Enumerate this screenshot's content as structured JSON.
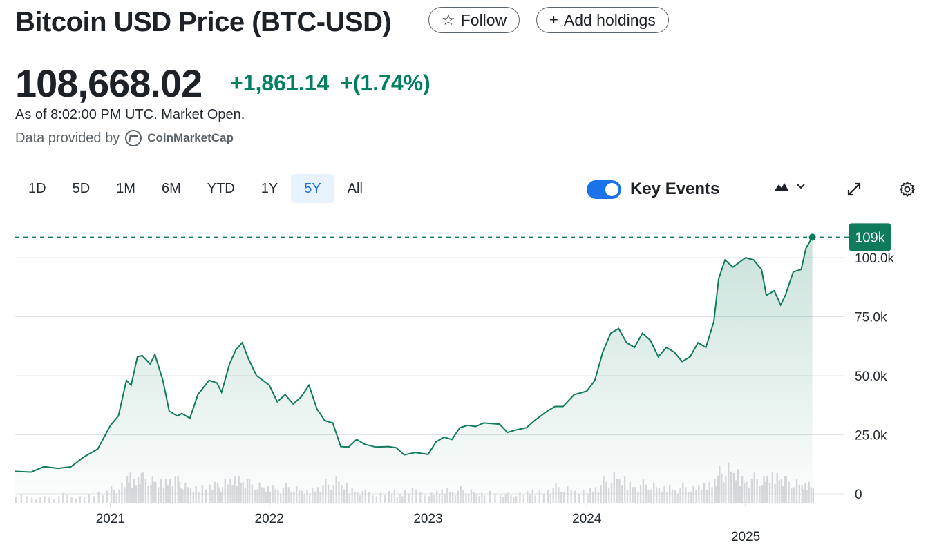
{
  "header": {
    "title": "Bitcoin USD Price (BTC-USD)",
    "follow_label": "Follow",
    "add_holdings_label": "Add holdings"
  },
  "quote": {
    "price": "108,668.02",
    "change": "+1,861.14",
    "change_percent": "+(1.74%)",
    "as_of": "As of 8:02:00 PM UTC. Market Open.",
    "provider_prefix": "Data provided by",
    "provider_name": "CoinMarketCap"
  },
  "toolbar": {
    "ranges": [
      "1D",
      "5D",
      "1M",
      "6M",
      "YTD",
      "1Y",
      "5Y",
      "All"
    ],
    "active_range": "5Y",
    "key_events_label": "Key Events",
    "key_events_enabled": true
  },
  "icons": {
    "follow": "star-icon",
    "add": "plus-icon",
    "chart_type": "mountain-chart-icon",
    "expand": "expand-icon",
    "settings": "gear-icon",
    "provider": "coinmarketcap-logo-icon"
  },
  "colors": {
    "line": "#0f7a5c",
    "positive": "#008060",
    "active_range": "#1a73e8"
  },
  "chart_data": {
    "type": "area",
    "title": "",
    "xlabel": "",
    "ylabel": "",
    "last_value_label": "109k",
    "last_value": 108668,
    "y_ticks": [
      "100.0k",
      "75.0k",
      "50.0k",
      "25.0k",
      "0"
    ],
    "y_tick_values": [
      100000,
      75000,
      50000,
      25000,
      0
    ],
    "ylim": [
      0,
      112000
    ],
    "x_tick_labels": [
      "2021",
      "2022",
      "2023",
      "2024",
      "2025"
    ],
    "x_tick_dates": [
      2021.0,
      2022.0,
      2023.0,
      2024.0,
      2025.0
    ],
    "xlim": [
      2020.4,
      2025.5
    ],
    "grid": true,
    "series": [
      {
        "x": [
          2020.4,
          2020.5,
          2020.58,
          2020.67,
          2020.75,
          2020.83,
          2020.92,
          2021.0,
          2021.05,
          2021.1,
          2021.13,
          2021.17,
          2021.2,
          2021.25,
          2021.28,
          2021.33,
          2021.37,
          2021.42,
          2021.45,
          2021.5,
          2021.55,
          2021.62,
          2021.67,
          2021.7,
          2021.75,
          2021.79,
          2021.83,
          2021.87,
          2021.92,
          2021.96,
          2022.0,
          2022.05,
          2022.1,
          2022.15,
          2022.2,
          2022.25,
          2022.3,
          2022.35,
          2022.4,
          2022.45,
          2022.5,
          2022.55,
          2022.6,
          2022.67,
          2022.75,
          2022.8,
          2022.85,
          2022.92,
          2023.0,
          2023.05,
          2023.1,
          2023.15,
          2023.2,
          2023.25,
          2023.3,
          2023.35,
          2023.45,
          2023.5,
          2023.55,
          2023.62,
          2023.67,
          2023.75,
          2023.8,
          2023.85,
          2023.92,
          2024.0,
          2024.05,
          2024.1,
          2024.15,
          2024.2,
          2024.25,
          2024.3,
          2024.35,
          2024.4,
          2024.45,
          2024.5,
          2024.55,
          2024.6,
          2024.65,
          2024.7,
          2024.75,
          2024.8,
          2024.83,
          2024.87,
          2024.92,
          2024.96,
          2025.0,
          2025.05,
          2025.1,
          2025.13,
          2025.18,
          2025.22,
          2025.25,
          2025.3,
          2025.35,
          2025.38,
          2025.42
        ],
        "y": [
          9500,
          9200,
          11500,
          10800,
          11400,
          15500,
          19000,
          29000,
          33000,
          48000,
          46000,
          58000,
          58500,
          55000,
          59000,
          48000,
          35000,
          33000,
          34000,
          32000,
          42000,
          48000,
          47000,
          43000,
          55000,
          61000,
          64000,
          57000,
          50000,
          48000,
          46000,
          39000,
          42000,
          38000,
          41000,
          46000,
          36000,
          31000,
          30000,
          20000,
          19800,
          23000,
          21000,
          19800,
          20000,
          19500,
          16500,
          17500,
          16700,
          22000,
          24000,
          23000,
          28000,
          29000,
          28500,
          30000,
          29500,
          26000,
          27000,
          28000,
          31000,
          35000,
          37000,
          37000,
          42000,
          43500,
          48000,
          60000,
          68000,
          70000,
          64000,
          62000,
          68000,
          65000,
          58000,
          62000,
          60000,
          56000,
          58000,
          64000,
          62000,
          73000,
          91000,
          99000,
          96000,
          98000,
          100000,
          99000,
          95000,
          84000,
          86000,
          80000,
          84000,
          94000,
          95000,
          104000,
          108668
        ]
      }
    ],
    "volume": [
      3,
      2,
      2,
      3,
      2,
      3,
      4,
      5,
      6,
      9,
      8,
      10,
      9,
      8,
      7,
      8,
      9,
      8,
      6,
      5,
      6,
      7,
      6,
      7,
      8,
      9,
      8,
      7,
      6,
      5,
      6,
      5,
      6,
      5,
      4,
      5,
      6,
      7,
      8,
      6,
      5,
      4,
      4,
      3,
      4,
      3,
      5,
      4,
      3,
      4,
      5,
      4,
      5,
      4,
      3,
      4,
      3,
      3,
      3,
      4,
      4,
      5,
      6,
      5,
      4,
      5,
      6,
      8,
      9,
      8,
      7,
      6,
      7,
      6,
      5,
      6,
      5,
      6,
      5,
      6,
      7,
      9,
      11,
      12,
      10,
      9,
      8,
      9,
      8,
      9,
      10,
      9,
      8,
      7,
      6,
      7,
      5
    ]
  }
}
